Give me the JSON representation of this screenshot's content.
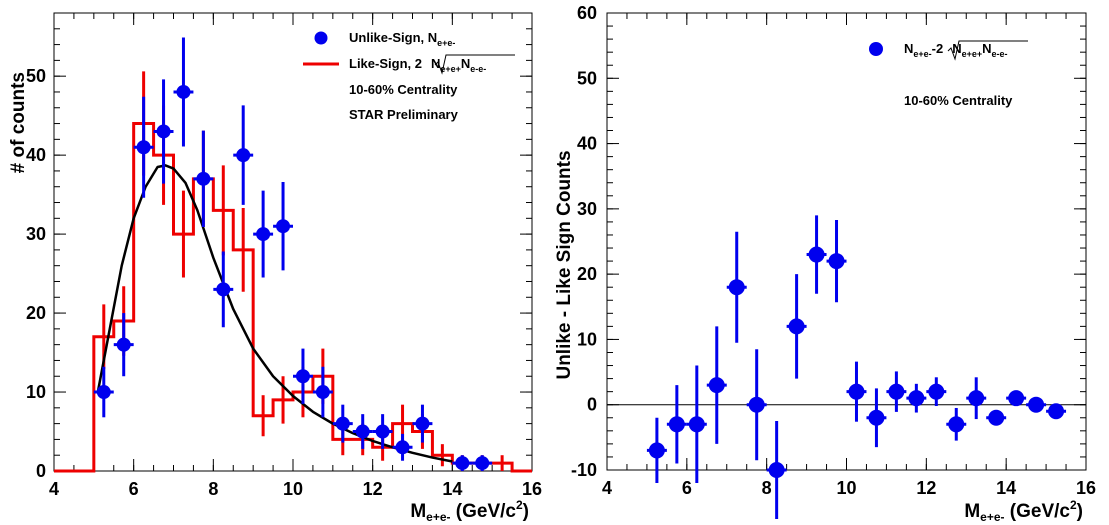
{
  "chart_data": [
    {
      "type": "scatter",
      "title": "",
      "xlabel": "M",
      "xlabel_sub": "e+e-",
      "xlabel_unit": " (GeV/c",
      "xlabel_sup": "2",
      "xlabel_close": ")",
      "ylabel": "# of counts",
      "xlim": [
        4,
        16
      ],
      "ylim": [
        0,
        58
      ],
      "xticks": [
        4,
        6,
        8,
        10,
        12,
        14,
        16
      ],
      "yticks": [
        0,
        10,
        20,
        30,
        40,
        50
      ],
      "legend_position": "top-right",
      "annotations": [
        "10-60% Centrality",
        "STAR Preliminary"
      ],
      "colors": {
        "unlike": "#0000ee",
        "like": "#ee0000",
        "fit": "#000000"
      },
      "series": [
        {
          "name": "Unlike-Sign, N",
          "name_sub": "e+e-",
          "kind": "points",
          "x": [
            5.25,
            5.75,
            6.25,
            6.75,
            7.25,
            7.75,
            8.25,
            8.75,
            9.25,
            9.75,
            10.25,
            10.75,
            11.25,
            11.75,
            12.25,
            12.75,
            13.25,
            14.25,
            14.75
          ],
          "y": [
            10,
            16,
            41,
            43,
            48,
            37,
            23,
            40,
            30,
            31,
            12,
            10,
            6,
            5,
            5,
            3,
            6,
            1,
            1
          ],
          "yerr": [
            3.2,
            4.0,
            6.4,
            6.6,
            6.9,
            6.1,
            4.8,
            6.3,
            5.5,
            5.6,
            3.5,
            3.2,
            2.4,
            2.2,
            2.2,
            1.7,
            2.4,
            1.0,
            1.0
          ]
        },
        {
          "name": "Like-Sign, 2",
          "name_root": "N",
          "name_root_sub1": "e+e+",
          "name_root_mid": "N",
          "name_root_sub2": "e-e-",
          "kind": "step",
          "edges": [
            4.0,
            4.5,
            5.0,
            5.5,
            6.0,
            6.5,
            7.0,
            7.5,
            8.0,
            8.5,
            9.0,
            9.5,
            10.0,
            10.5,
            11.0,
            11.5,
            12.0,
            12.5,
            13.0,
            13.5,
            14.0,
            14.5,
            15.0,
            15.5,
            16.0
          ],
          "values": [
            0,
            0,
            17,
            19,
            44,
            40,
            30,
            37,
            33,
            28,
            7,
            9,
            10,
            12,
            4,
            4,
            3,
            6,
            5,
            2,
            1,
            1,
            1,
            0
          ],
          "yerr": [
            0,
            0,
            4.1,
            4.4,
            6.6,
            6.3,
            5.5,
            6.1,
            5.7,
            5.3,
            2.6,
            3.0,
            3.2,
            3.5,
            2.0,
            2.0,
            1.7,
            2.4,
            2.2,
            1.4,
            1.0,
            1.0,
            1.0,
            0
          ]
        },
        {
          "name": "",
          "kind": "curve",
          "x": [
            5.1,
            5.4,
            5.7,
            6.0,
            6.3,
            6.6,
            6.8,
            7.0,
            7.3,
            7.6,
            8.0,
            8.5,
            9.0,
            9.5,
            10.0,
            10.5,
            11.0,
            11.5,
            12.0,
            12.5,
            13.0,
            13.5,
            14.0
          ],
          "y": [
            10,
            18,
            26,
            32,
            36,
            38.5,
            38.7,
            38.3,
            36.5,
            33,
            27,
            20.5,
            15.5,
            12,
            9.5,
            7.5,
            6,
            4.8,
            3.8,
            3,
            2.3,
            1.7,
            1.2
          ]
        }
      ]
    },
    {
      "type": "scatter",
      "title": "",
      "xlabel": "M",
      "xlabel_sub": "e+e-",
      "xlabel_unit": " (GeV/c",
      "xlabel_sup": "2",
      "xlabel_close": ")",
      "ylabel": "Unlike - Like Sign Counts",
      "xlim": [
        4,
        16
      ],
      "ylim": [
        -10,
        60
      ],
      "xticks": [
        4,
        6,
        8,
        10,
        12,
        14,
        16
      ],
      "yticks": [
        -10,
        0,
        10,
        20,
        30,
        40,
        50,
        60
      ],
      "reference_line": 0,
      "legend_position": "top-right",
      "annotations": [
        "10-60% Centrality"
      ],
      "colors": {
        "points": "#0000ee"
      },
      "series": [
        {
          "name": "N",
          "name_sub": "e+e-",
          "name_mid": "-2",
          "name_root": "N",
          "name_root_sub1": "e+e+",
          "name_root_mid": "N",
          "name_root_sub2": "e-e-",
          "kind": "points",
          "x": [
            5.25,
            5.75,
            6.25,
            6.75,
            7.25,
            7.75,
            8.25,
            8.75,
            9.25,
            9.75,
            10.25,
            10.75,
            11.25,
            11.75,
            12.25,
            12.75,
            13.25,
            13.75,
            14.25,
            14.75,
            15.25
          ],
          "y": [
            -7,
            -3,
            -3,
            3,
            18,
            0,
            -10,
            12,
            23,
            22,
            2,
            -2,
            2,
            1,
            2,
            -3,
            1,
            -2,
            1,
            0,
            -1
          ],
          "yerr": [
            5,
            6,
            9,
            9,
            8.5,
            8.5,
            7.5,
            8,
            6,
            6.3,
            4.6,
            4.5,
            3.1,
            2.2,
            2.2,
            2.5,
            3.2,
            0.5,
            0.7,
            0.7,
            0.5
          ]
        }
      ]
    }
  ]
}
